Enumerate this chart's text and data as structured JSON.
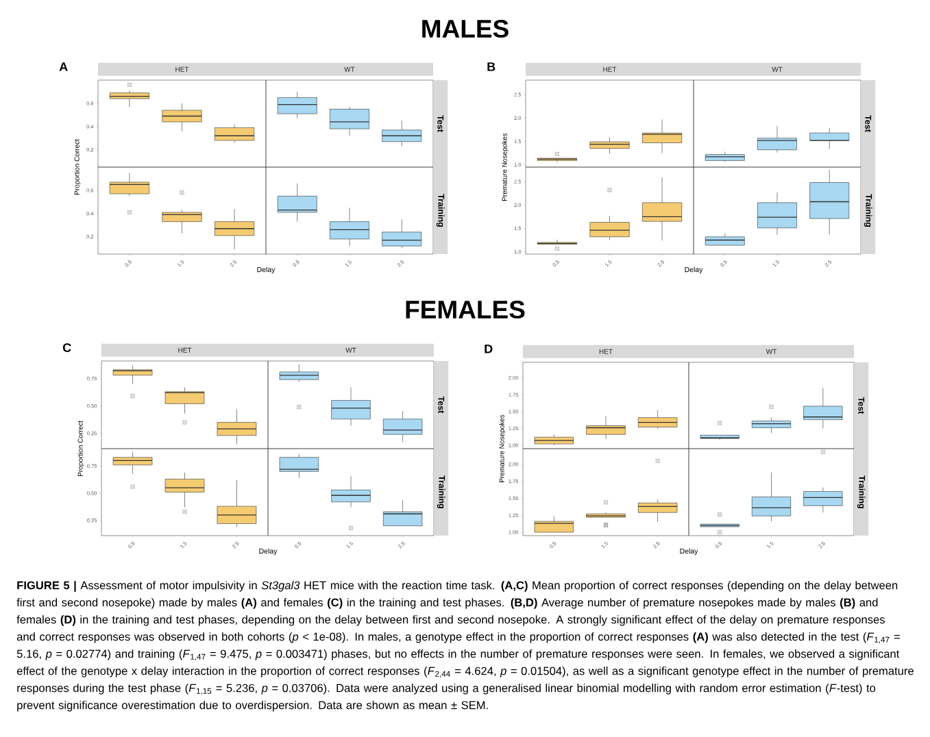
{
  "chart_data": [
    {
      "type": "box",
      "title": "HET",
      "ylabel": "Proportion Correct",
      "annotations": [
        "MALES",
        "A"
      ],
      "categories": [
        "0.5",
        "1.5",
        "2.5"
      ],
      "ylim": [
        0.05,
        0.8
      ],
      "yticks": [
        0.2,
        0.4,
        0.6
      ],
      "tick_labels": "y",
      "color": "#f5cb72",
      "boxes": [
        {
          "low": 0.57,
          "q1": 0.64,
          "median": 0.66,
          "q3": 0.69,
          "high": 0.71,
          "outliers": [
            0.76
          ]
        },
        {
          "low": 0.36,
          "q1": 0.44,
          "median": 0.49,
          "q3": 0.54,
          "high": 0.6
        },
        {
          "low": 0.26,
          "q1": 0.28,
          "median": 0.32,
          "q3": 0.39,
          "high": 0.42
        }
      ]
    },
    {
      "type": "box",
      "title": "WT",
      "y2label": "Test",
      "categories": [
        "0.5",
        "1.5",
        "2.5"
      ],
      "ylim": [
        0.05,
        0.8
      ],
      "yticks": [
        0.2,
        0.4,
        0.6
      ],
      "tick_labels": false,
      "color": "#a8d8f2",
      "boxes": [
        {
          "low": 0.47,
          "q1": 0.51,
          "median": 0.59,
          "q3": 0.65,
          "high": 0.7
        },
        {
          "low": 0.32,
          "q1": 0.38,
          "median": 0.44,
          "q3": 0.55,
          "high": 0.57
        },
        {
          "low": 0.23,
          "q1": 0.27,
          "median": 0.32,
          "q3": 0.37,
          "high": 0.45
        }
      ]
    },
    {
      "type": "box",
      "xlabel": "Delay",
      "categories": [
        "0.5",
        "1.5",
        "2.5"
      ],
      "ylim": [
        0.05,
        0.8
      ],
      "yticks": [
        0.2,
        0.4,
        0.6
      ],
      "color": "#f5cb72",
      "boxes": [
        {
          "low": 0.55,
          "q1": 0.57,
          "median": 0.65,
          "q3": 0.67,
          "high": 0.75,
          "outliers": [
            0.41
          ]
        },
        {
          "low": 0.23,
          "q1": 0.33,
          "median": 0.39,
          "q3": 0.41,
          "high": 0.43,
          "outliers": [
            0.58
          ]
        },
        {
          "low": 0.09,
          "q1": 0.21,
          "median": 0.27,
          "q3": 0.33,
          "high": 0.44
        }
      ]
    },
    {
      "type": "box",
      "y2label": "Training",
      "categories": [
        "0.5",
        "1.5",
        "2.5"
      ],
      "ylim": [
        0.05,
        0.8
      ],
      "yticks": [
        0.2,
        0.4,
        0.6
      ],
      "tick_labels": "x",
      "color": "#a8d8f2",
      "boxes": [
        {
          "low": 0.33,
          "q1": 0.41,
          "median": 0.43,
          "q3": 0.55,
          "high": 0.66
        },
        {
          "low": 0.12,
          "q1": 0.18,
          "median": 0.26,
          "q3": 0.33,
          "high": 0.45
        },
        {
          "low": 0.1,
          "q1": 0.12,
          "median": 0.17,
          "q3": 0.24,
          "high": 0.35
        }
      ]
    },
    {
      "type": "box",
      "title": "HET",
      "ylabel": "Premature Nosepokes",
      "annotations": [
        "B"
      ],
      "categories": [
        "0.5",
        "1.5",
        "2.5"
      ],
      "ylim": [
        0.95,
        2.81
      ],
      "yticks": [
        {
          "value": 1.0,
          "label": "1.0"
        },
        1.5,
        {
          "value": 2.0,
          "label": "2.0"
        },
        2.5
      ],
      "tick_labels": "y",
      "color": "#f5cb72",
      "boxes": [
        {
          "low": 1.05,
          "q1": 1.09,
          "median": 1.12,
          "q3": 1.14,
          "high": 1.14,
          "outliers": [
            1.23
          ]
        },
        {
          "low": 1.24,
          "q1": 1.35,
          "median": 1.44,
          "q3": 1.49,
          "high": 1.59
        },
        {
          "low": 1.25,
          "q1": 1.47,
          "median": 1.65,
          "q3": 1.68,
          "high": 1.97
        }
      ]
    },
    {
      "type": "box",
      "title": "WT",
      "y2label": "Test",
      "categories": [
        "0.5",
        "1.5",
        "2.5"
      ],
      "ylim": [
        0.95,
        2.81
      ],
      "yticks": [
        1,
        1.5,
        2,
        2.5
      ],
      "tick_labels": false,
      "color": "#a8d8f2",
      "boxes": [
        {
          "low": 1.06,
          "q1": 1.09,
          "median": 1.17,
          "q3": 1.22,
          "high": 1.28
        },
        {
          "low": 1.26,
          "q1": 1.32,
          "median": 1.52,
          "q3": 1.57,
          "high": 1.83
        },
        {
          "low": 1.34,
          "q1": 1.52,
          "median": 1.52,
          "q3": 1.68,
          "high": 1.78
        }
      ]
    },
    {
      "type": "box",
      "xlabel": "Delay",
      "categories": [
        "0.5",
        "1.5",
        "2.5"
      ],
      "ylim": [
        0.95,
        2.81
      ],
      "yticks": [
        {
          "value": 1.0,
          "label": "1.0"
        },
        1.5,
        {
          "value": 2.0,
          "label": "2.0"
        },
        2.5
      ],
      "color": "#f5cb72",
      "boxes": [
        {
          "low": 1.16,
          "q1": 1.16,
          "median": 1.18,
          "q3": 1.2,
          "high": 1.26,
          "outliers": [
            1.07
          ]
        },
        {
          "low": 1.25,
          "q1": 1.32,
          "median": 1.46,
          "q3": 1.63,
          "high": 1.77,
          "outliers": [
            2.32
          ]
        },
        {
          "low": 1.24,
          "q1": 1.65,
          "median": 1.75,
          "q3": 2.05,
          "high": 2.59
        }
      ]
    },
    {
      "type": "box",
      "y2label": "Training",
      "categories": [
        "0.5",
        "1.5",
        "2.5"
      ],
      "ylim": [
        0.95,
        2.81
      ],
      "yticks": [
        1,
        1.5,
        2,
        2.5
      ],
      "tick_labels": "x",
      "color": "#a8d8f2",
      "boxes": [
        {
          "low": 1.14,
          "q1": 1.14,
          "median": 1.25,
          "q3": 1.32,
          "high": 1.39
        },
        {
          "low": 1.36,
          "q1": 1.51,
          "median": 1.74,
          "q3": 2.05,
          "high": 2.27
        },
        {
          "low": 1.37,
          "q1": 1.71,
          "median": 2.07,
          "q3": 2.48,
          "high": 2.75
        }
      ]
    },
    {
      "type": "box",
      "title": "HET",
      "ylabel": "Proportion Correct",
      "annotations": [
        "FEMALES",
        "C"
      ],
      "categories": [
        "0.5",
        "1.5",
        "2.5"
      ],
      "ylim": [
        0.11,
        0.91
      ],
      "yticks": [
        0.25,
        {
          "value": 0.5,
          "label": "0.50"
        },
        0.75
      ],
      "tick_labels": "y",
      "color": "#f5cb72",
      "boxes": [
        {
          "low": 0.7,
          "q1": 0.78,
          "median": 0.82,
          "q3": 0.83,
          "high": 0.87,
          "outliers": [
            0.59
          ]
        },
        {
          "low": 0.43,
          "q1": 0.52,
          "median": 0.62,
          "q3": 0.63,
          "high": 0.67,
          "outliers": [
            0.35
          ]
        },
        {
          "low": 0.15,
          "q1": 0.23,
          "median": 0.29,
          "q3": 0.35,
          "high": 0.47
        }
      ]
    },
    {
      "type": "box",
      "title": "WT",
      "y2label": "Test",
      "categories": [
        "0.5",
        "1.5",
        "2.5"
      ],
      "ylim": [
        0.11,
        0.91
      ],
      "yticks": [
        0.25,
        0.5,
        0.75
      ],
      "tick_labels": false,
      "color": "#a8d8f2",
      "boxes": [
        {
          "low": 0.72,
          "q1": 0.74,
          "median": 0.78,
          "q3": 0.81,
          "high": 0.88,
          "outliers": [
            0.49
          ]
        },
        {
          "low": 0.32,
          "q1": 0.38,
          "median": 0.48,
          "q3": 0.55,
          "high": 0.67
        },
        {
          "low": 0.17,
          "q1": 0.24,
          "median": 0.28,
          "q3": 0.38,
          "high": 0.45
        }
      ]
    },
    {
      "type": "box",
      "xlabel": "Delay",
      "categories": [
        "0.5",
        "1.5",
        "2.5"
      ],
      "ylim": [
        0.11,
        0.91
      ],
      "yticks": [
        0.25,
        {
          "value": 0.5,
          "label": "0.50"
        },
        0.75
      ],
      "color": "#f5cb72",
      "boxes": [
        {
          "low": 0.68,
          "q1": 0.76,
          "median": 0.8,
          "q3": 0.83,
          "high": 0.88,
          "outliers": [
            0.56
          ]
        },
        {
          "low": 0.37,
          "q1": 0.51,
          "median": 0.55,
          "q3": 0.63,
          "high": 0.69,
          "outliers": [
            0.33
          ]
        },
        {
          "low": 0.19,
          "q1": 0.22,
          "median": 0.3,
          "q3": 0.38,
          "high": 0.62
        }
      ]
    },
    {
      "type": "box",
      "y2label": "Training",
      "categories": [
        "0.5",
        "1.5",
        "2.5"
      ],
      "ylim": [
        0.11,
        0.91
      ],
      "yticks": [
        0.25,
        0.5,
        0.75
      ],
      "tick_labels": "x",
      "color": "#a8d8f2",
      "boxes": [
        {
          "low": 0.64,
          "q1": 0.7,
          "median": 0.72,
          "q3": 0.83,
          "high": 0.86
        },
        {
          "low": 0.37,
          "q1": 0.42,
          "median": 0.48,
          "q3": 0.53,
          "high": 0.66,
          "outliers": [
            0.18
          ]
        },
        {
          "low": 0.2,
          "q1": 0.2,
          "median": 0.31,
          "q3": 0.33,
          "high": 0.44
        }
      ]
    },
    {
      "type": "box",
      "title": "HET",
      "ylabel": "Premature Nosepokes",
      "annotations": [
        "D"
      ],
      "categories": [
        "0.5",
        "1.5",
        "2.5"
      ],
      "ylim": [
        0.95,
        2.23
      ],
      "yticks": [
        {
          "value": 1.0,
          "label": "1.00"
        },
        1.25,
        {
          "value": 1.5,
          "label": "1.50"
        },
        1.75,
        {
          "value": 2.0,
          "label": "2.00"
        }
      ],
      "tick_labels": "y",
      "color": "#f5cb72",
      "boxes": [
        {
          "low": 1.0,
          "q1": 1.02,
          "median": 1.07,
          "q3": 1.12,
          "high": 1.16
        },
        {
          "low": 1.09,
          "q1": 1.16,
          "median": 1.26,
          "q3": 1.29,
          "high": 1.43
        },
        {
          "low": 1.24,
          "q1": 1.27,
          "median": 1.34,
          "q3": 1.41,
          "high": 1.52
        }
      ]
    },
    {
      "type": "box",
      "title": "WT",
      "y2label": "Test",
      "categories": [
        "0.5",
        "1.5",
        "2.5"
      ],
      "ylim": [
        0.95,
        2.23
      ],
      "yticks": [
        1,
        1.25,
        1.5,
        1.75,
        2
      ],
      "tick_labels": false,
      "color": "#a8d8f2",
      "boxes": [
        {
          "low": 1.08,
          "q1": 1.1,
          "median": 1.11,
          "q3": 1.15,
          "high": 1.15,
          "outliers": [
            1.33
          ]
        },
        {
          "low": 1.18,
          "q1": 1.26,
          "median": 1.32,
          "q3": 1.36,
          "high": 1.41,
          "outliers": [
            1.57
          ]
        },
        {
          "low": 1.25,
          "q1": 1.38,
          "median": 1.42,
          "q3": 1.58,
          "high": 1.85
        }
      ]
    },
    {
      "type": "box",
      "xlabel": "Delay",
      "categories": [
        "0.5",
        "1.5",
        "2.5"
      ],
      "ylim": [
        0.95,
        2.23
      ],
      "yticks": [
        {
          "value": 1.0,
          "label": "1.00"
        },
        1.25,
        {
          "value": 1.5,
          "label": "1.50"
        },
        1.75,
        {
          "value": 2.0,
          "label": "2.00"
        }
      ],
      "color": "#f5cb72",
      "boxes": [
        {
          "low": 1.0,
          "q1": 1.0,
          "median": 1.13,
          "q3": 1.16,
          "high": 1.24
        },
        {
          "low": 1.22,
          "q1": 1.22,
          "median": 1.24,
          "q3": 1.27,
          "high": 1.29,
          "outliers": [
            1.1,
            1.11,
            1.44
          ]
        },
        {
          "low": 1.15,
          "q1": 1.29,
          "median": 1.38,
          "q3": 1.43,
          "high": 1.48,
          "outliers": [
            2.05
          ]
        }
      ]
    },
    {
      "type": "box",
      "y2label": "Training",
      "categories": [
        "0.5",
        "1.5",
        "2.5"
      ],
      "ylim": [
        0.95,
        2.23
      ],
      "yticks": [
        1,
        1.25,
        1.5,
        1.75,
        2
      ],
      "tick_labels": "x",
      "color": "#a8d8f2",
      "annotations": [
        "**FIGURE 5 |** Assessment of motor impulsivity in *St3gal3* HET mice with the reaction time task. **(A,C)** Mean proportion of correct responses (depending on the delay between first and second nosepoke) made by males **(A)** and females **(C)** in the training and test phases. **(B,D)** Average number of premature nosepokes made by males **(B)** and females **(D)** in the training and test phases, depending on the delay between first and second nosepoke. A strongly significant effect of the delay on premature responses and correct responses was observed in both cohorts (*p* < 1e-08). In males, a genotype effect in the proportion of correct responses **(A)** was also detected in the test (*F*$_{1,47}$ = 5.16, *p* = 0.02774) and training (*F*$_{1,47}$ = 9.475, *p* = 0.003471) phases, but no effects in the number of premature responses were seen. In females, we observed a significant effect of the genotype x delay interaction in the proportion of correct responses (*F*$_{2,44}$ = 4.624, *p* = 0.01504), as well as a significant genotype effect in the number of premature responses during the test phase (*F*$_{1,15}$ = 5.236, *p* = 0.03706). Data were analyzed using a generalised linear binomial modelling with random error estimation (*F*-test) to prevent significance overestimation due to overdispersion. Data are shown as mean ± SEM."
      ],
      "boxes": [
        {
          "low": 1.08,
          "q1": 1.08,
          "median": 1.1,
          "q3": 1.12,
          "high": 1.12,
          "outliers": [
            1.0,
            1.26
          ]
        },
        {
          "low": 1.16,
          "q1": 1.24,
          "median": 1.36,
          "q3": 1.52,
          "high": 1.88
        },
        {
          "low": 1.29,
          "q1": 1.39,
          "median": 1.51,
          "q3": 1.6,
          "high": 1.66,
          "outliers": [
            2.18
          ]
        }
      ]
    }
  ]
}
